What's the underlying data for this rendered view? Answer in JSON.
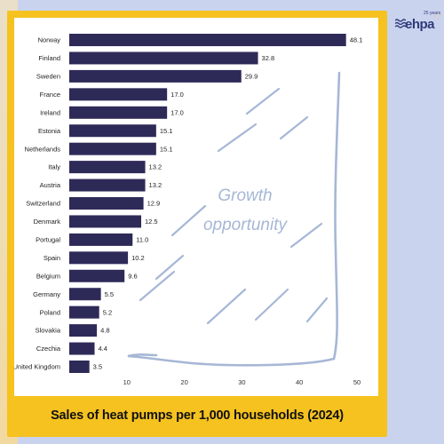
{
  "chart_data": {
    "type": "bar",
    "orientation": "horizontal",
    "title": "Sales of heat pumps per 1,000 households (2024)",
    "categories": [
      "Norway",
      "Finland",
      "Sweden",
      "France",
      "Ireland",
      "Estonia",
      "Netherlands",
      "Italy",
      "Austria",
      "Switzerland",
      "Denmark",
      "Portugal",
      "Spain",
      "Belgium",
      "Germany",
      "Poland",
      "Slovakia",
      "Czechia",
      "United Kingdom"
    ],
    "values": [
      48.1,
      32.8,
      29.9,
      17.0,
      17.0,
      15.1,
      15.1,
      13.2,
      13.2,
      12.9,
      12.5,
      11.0,
      10.2,
      9.6,
      5.5,
      5.2,
      4.8,
      4.4,
      3.5
    ],
    "value_labels": [
      "48.1",
      "32.8",
      "29.9",
      "17.0",
      "17.0",
      "15.1",
      "15.1",
      "13.2",
      "13.2",
      "12.9",
      "12.5",
      "11.0",
      "10.2",
      "9.6",
      "5.5",
      "5.2",
      "4.8",
      "4.4",
      "3.5"
    ],
    "x_ticks": [
      "10",
      "20",
      "30",
      "40",
      "50"
    ],
    "x_tick_values": [
      10,
      20,
      30,
      40,
      50
    ],
    "xlim": [
      0,
      50
    ],
    "grid": false,
    "annotation": [
      "Growth",
      "opportunity"
    ],
    "bar_color": "#2e2a58"
  },
  "logo": {
    "text": "ehpa",
    "years": "25 years"
  },
  "colors": {
    "frame": "#f5c21f",
    "background": "#c9d3ee",
    "annotation": "#a6b7d6"
  }
}
